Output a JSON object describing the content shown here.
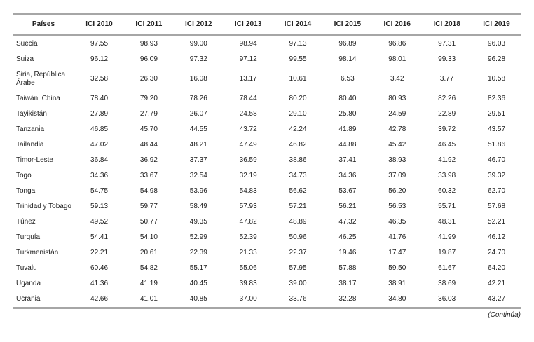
{
  "colors": {
    "border-color": "#a6a6a6",
    "text-color": "#202020",
    "bg-color": "#ffffff"
  },
  "table": {
    "columns": [
      "Países",
      "ICI 2010",
      "ICI 2011",
      "ICI 2012",
      "ICI 2013",
      "ICI 2014",
      "ICI 2015",
      "ICI 2016",
      "ICI 2018",
      "ICI 2019"
    ],
    "rows": [
      {
        "pais": "Suecia",
        "values": [
          "97.55",
          "98.93",
          "99.00",
          "98.94",
          "97.13",
          "96.89",
          "96.86",
          "97.31",
          "96.03"
        ]
      },
      {
        "pais": "Suiza",
        "values": [
          "96.12",
          "96.09",
          "97.32",
          "97.12",
          "99.55",
          "98.14",
          "98.01",
          "99.33",
          "96.28"
        ]
      },
      {
        "pais": "Siria, República Árabe",
        "values": [
          "32.58",
          "26.30",
          "16.08",
          "13.17",
          "10.61",
          "6.53",
          "3.42",
          "3.77",
          "10.58"
        ]
      },
      {
        "pais": "Taiwán, China",
        "values": [
          "78.40",
          "79.20",
          "78.26",
          "78.44",
          "80.20",
          "80.40",
          "80.93",
          "82.26",
          "82.36"
        ]
      },
      {
        "pais": "Tayikistán",
        "values": [
          "27.89",
          "27.79",
          "26.07",
          "24.58",
          "29.10",
          "25.80",
          "24.59",
          "22.89",
          "29.51"
        ]
      },
      {
        "pais": "Tanzania",
        "values": [
          "46.85",
          "45.70",
          "44.55",
          "43.72",
          "42.24",
          "41.89",
          "42.78",
          "39.72",
          "43.57"
        ]
      },
      {
        "pais": "Tailandia",
        "values": [
          "47.02",
          "48.44",
          "48.21",
          "47.49",
          "46.82",
          "44.88",
          "45.42",
          "46.45",
          "51.86"
        ]
      },
      {
        "pais": "Timor-Leste",
        "values": [
          "36.84",
          "36.92",
          "37.37",
          "36.59",
          "38.86",
          "37.41",
          "38.93",
          "41.92",
          "46.70"
        ]
      },
      {
        "pais": "Togo",
        "values": [
          "34.36",
          "33.67",
          "32.54",
          "32.19",
          "34.73",
          "34.36",
          "37.09",
          "33.98",
          "39.32"
        ]
      },
      {
        "pais": "Tonga",
        "values": [
          "54.75",
          "54.98",
          "53.96",
          "54.83",
          "56.62",
          "53.67",
          "56.20",
          "60.32",
          "62.70"
        ]
      },
      {
        "pais": "Trinidad y Tobago",
        "values": [
          "59.13",
          "59.77",
          "58.49",
          "57.93",
          "57.21",
          "56.21",
          "56.53",
          "55.71",
          "57.68"
        ]
      },
      {
        "pais": "Túnez",
        "values": [
          "49.52",
          "50.77",
          "49.35",
          "47.82",
          "48.89",
          "47.32",
          "46.35",
          "48.31",
          "52.21"
        ]
      },
      {
        "pais": "Turquía",
        "values": [
          "54.41",
          "54.10",
          "52.99",
          "52.39",
          "50.96",
          "46.25",
          "41.76",
          "41.99",
          "46.12"
        ]
      },
      {
        "pais": "Turkmenistán",
        "values": [
          "22.21",
          "20.61",
          "22.39",
          "21.33",
          "22.37",
          "19.46",
          "17.47",
          "19.87",
          "24.70"
        ]
      },
      {
        "pais": "Tuvalu",
        "values": [
          "60.46",
          "54.82",
          "55.17",
          "55.06",
          "57.95",
          "57.88",
          "59.50",
          "61.67",
          "64.20"
        ]
      },
      {
        "pais": "Uganda",
        "values": [
          "41.36",
          "41.19",
          "40.45",
          "39.83",
          "39.00",
          "38.17",
          "38.91",
          "38.69",
          "42.21"
        ]
      },
      {
        "pais": "Ucrania",
        "values": [
          "42.66",
          "41.01",
          "40.85",
          "37.00",
          "33.76",
          "32.28",
          "34.80",
          "36.03",
          "43.27"
        ]
      }
    ],
    "footer_note": "(Continúa)"
  }
}
